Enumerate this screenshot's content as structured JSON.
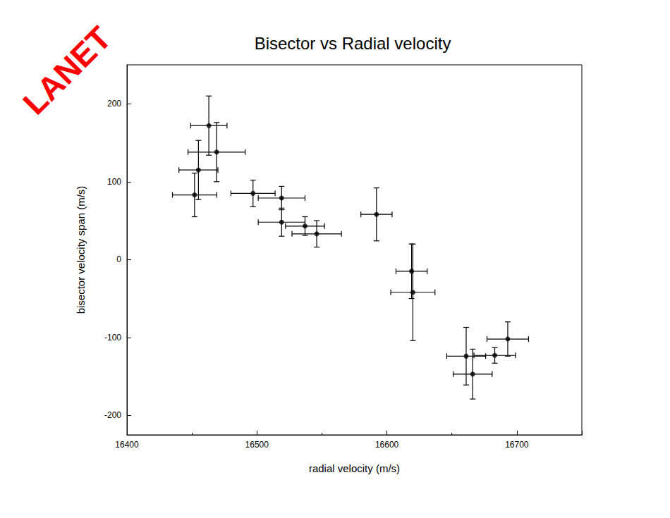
{
  "chart_data": {
    "type": "scatter",
    "title": "Bisector vs Radial velocity",
    "x_label": "radial velocity (m/s)",
    "y_label": "bisector velocity span (m/s)",
    "x": [
      16452,
      16455,
      16463,
      16469,
      16497,
      16519,
      16519,
      16537,
      16546,
      16592,
      16619,
      16620,
      16661,
      16666,
      16683,
      16693
    ],
    "values": [
      83,
      115,
      172,
      138,
      85,
      79,
      48,
      43,
      33,
      58,
      -15,
      -42,
      -124,
      -147,
      -123,
      -102
    ],
    "x_error": [
      17,
      15,
      14,
      22,
      17,
      18,
      18,
      15,
      19,
      12,
      12,
      17,
      15,
      15,
      16,
      16
    ],
    "y_error": [
      28,
      38,
      38,
      38,
      17,
      15,
      18,
      12,
      17,
      34,
      35,
      62,
      37,
      32,
      10,
      22
    ],
    "color": "#000000",
    "marker": "circle",
    "xlim": [
      16400,
      16750
    ],
    "xticks": [
      16400,
      16500,
      16600,
      16700
    ],
    "ylim": [
      -225,
      250
    ],
    "yticks": [
      -200,
      -100,
      0,
      100,
      200
    ],
    "grid": false,
    "annotations": [
      {
        "text": "LANET",
        "color": "#ff0000"
      }
    ]
  }
}
